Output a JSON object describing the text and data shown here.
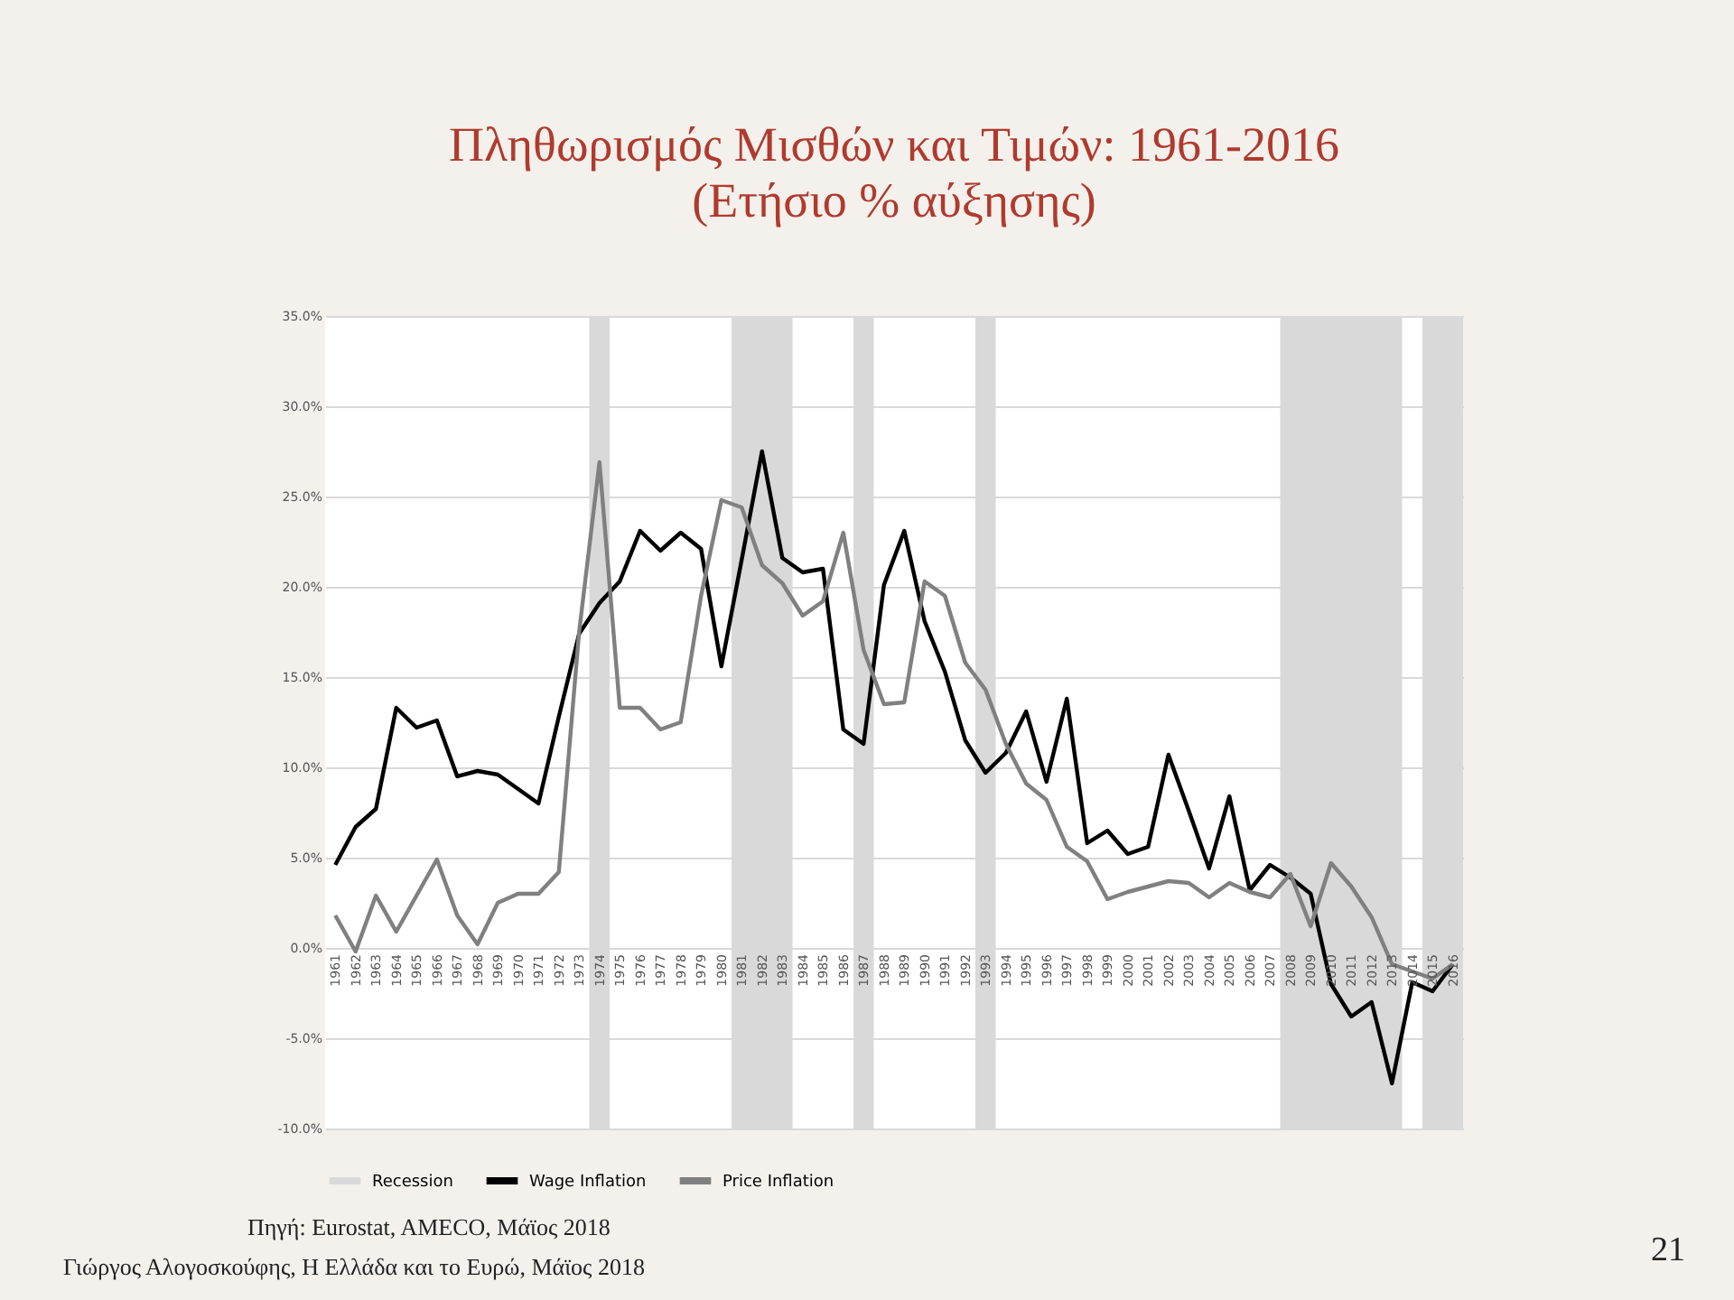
{
  "chart_data": {
    "type": "line",
    "title": "Πληθωρισμός Μισθών και Τιμών: 1961-2016",
    "subtitle": "(Ετήσιο % αύξησης)",
    "x": [
      1961,
      1962,
      1963,
      1964,
      1965,
      1966,
      1967,
      1968,
      1969,
      1970,
      1971,
      1972,
      1973,
      1974,
      1975,
      1976,
      1977,
      1978,
      1979,
      1980,
      1981,
      1982,
      1983,
      1984,
      1985,
      1986,
      1987,
      1988,
      1989,
      1990,
      1991,
      1992,
      1993,
      1994,
      1995,
      1996,
      1997,
      1998,
      1999,
      2000,
      2001,
      2002,
      2003,
      2004,
      2005,
      2006,
      2007,
      2008,
      2009,
      2010,
      2011,
      2012,
      2013,
      2014,
      2015,
      2016
    ],
    "series": [
      {
        "name": "Wage Inflation",
        "color": "#000000",
        "values": [
          4.6,
          6.7,
          7.7,
          13.3,
          12.2,
          12.6,
          9.5,
          9.8,
          9.6,
          8.8,
          8.0,
          12.8,
          17.4,
          19.1,
          20.3,
          23.1,
          22.0,
          23.0,
          22.1,
          15.6,
          21.5,
          27.5,
          21.6,
          20.8,
          21.0,
          12.1,
          11.3,
          20.1,
          23.1,
          18.1,
          15.3,
          11.5,
          9.7,
          10.8,
          13.1,
          9.2,
          13.8,
          5.8,
          6.5,
          5.2,
          5.6,
          10.7,
          7.6,
          4.4,
          8.4,
          3.2,
          4.6,
          3.9,
          3.0,
          -2.0,
          -3.8,
          -3.0,
          -7.5,
          -1.9,
          -2.4,
          -0.9
        ]
      },
      {
        "name": "Price Inflation",
        "color": "#808080",
        "values": [
          1.8,
          -0.2,
          2.9,
          0.9,
          2.9,
          4.9,
          1.8,
          0.2,
          2.5,
          3.0,
          3.0,
          4.2,
          17.5,
          26.9,
          13.3,
          13.3,
          12.1,
          12.5,
          19.5,
          24.8,
          24.4,
          21.2,
          20.2,
          18.4,
          19.2,
          23.0,
          16.5,
          13.5,
          13.6,
          20.3,
          19.5,
          15.8,
          14.3,
          11.3,
          9.1,
          8.2,
          5.6,
          4.8,
          2.7,
          3.1,
          3.4,
          3.7,
          3.6,
          2.8,
          3.6,
          3.1,
          2.8,
          4.1,
          1.2,
          4.7,
          3.4,
          1.7,
          -0.9,
          -1.3,
          -1.7,
          -0.9
        ]
      }
    ],
    "bands": [
      {
        "axis": "x",
        "from": 1973.5,
        "to": 1974.5,
        "label": "Recession",
        "color": "#d9d9d9"
      },
      {
        "axis": "x",
        "from": 1980.5,
        "to": 1983.5,
        "color": "#d9d9d9"
      },
      {
        "axis": "x",
        "from": 1986.5,
        "to": 1987.5,
        "color": "#d9d9d9"
      },
      {
        "axis": "x",
        "from": 1992.5,
        "to": 1993.5,
        "color": "#d9d9d9"
      },
      {
        "axis": "x",
        "from": 2007.5,
        "to": 2013.5,
        "color": "#d9d9d9"
      },
      {
        "axis": "x",
        "from": 2014.5,
        "to": 2016.5,
        "color": "#d9d9d9"
      }
    ],
    "xlim": [
      1960.5,
      2016.5
    ],
    "xticks": [
      1961,
      1962,
      1963,
      1964,
      1965,
      1966,
      1967,
      1968,
      1969,
      1970,
      1971,
      1972,
      1973,
      1974,
      1975,
      1976,
      1977,
      1978,
      1979,
      1980,
      1981,
      1982,
      1983,
      1984,
      1985,
      1986,
      1987,
      1988,
      1989,
      1990,
      1991,
      1992,
      1993,
      1994,
      1995,
      1996,
      1997,
      1998,
      1999,
      2000,
      2001,
      2002,
      2003,
      2004,
      2005,
      2006,
      2007,
      2008,
      2009,
      2010,
      2011,
      2012,
      2013,
      2014,
      2015,
      2016
    ],
    "ylim": [
      -10,
      35
    ],
    "yticks": [
      {
        "value": -10,
        "label": "-10.0%"
      },
      {
        "value": -5,
        "label": "-5.0%"
      },
      {
        "value": 0,
        "label": "0.0%"
      },
      {
        "value": 5,
        "label": "5.0%"
      },
      {
        "value": 10,
        "label": "10.0%"
      },
      {
        "value": 15,
        "label": "15.0%"
      },
      {
        "value": 20,
        "label": "20.0%"
      },
      {
        "value": 25,
        "label": "25.0%"
      },
      {
        "value": 30,
        "label": "30.0%"
      },
      {
        "value": 35,
        "label": "35.0%"
      }
    ],
    "grid": "y",
    "legend": "bottom",
    "marker": "none",
    "line_style": "solid",
    "annotations": [
      "Πηγή: Eurostat, AMECO, Μάϊος 2018",
      "Γιώργος Αλογοσκούφης, Η Ελλάδα και το Ευρώ, Μάϊος 2018",
      "21"
    ]
  }
}
